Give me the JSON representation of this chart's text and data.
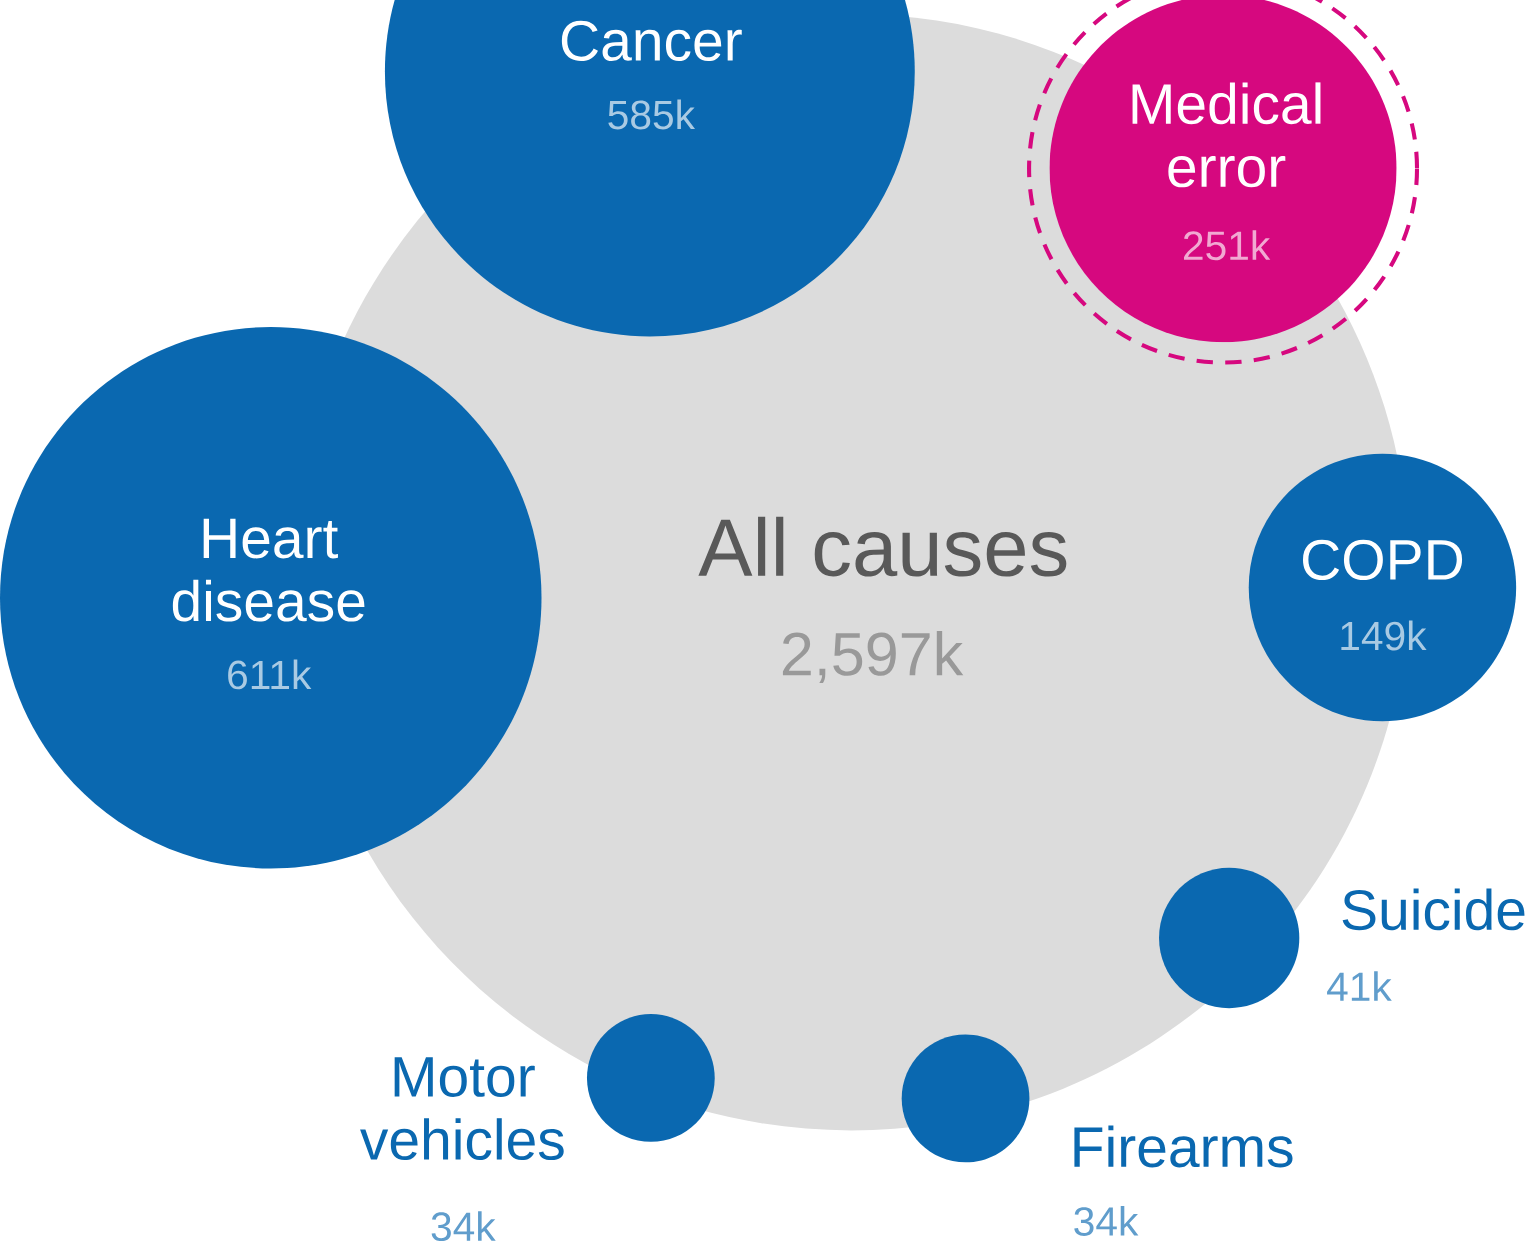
{
  "chart_data": {
    "type": "other",
    "categories": [
      "All causes",
      "Heart disease",
      "Cancer",
      "Medical error",
      "COPD",
      "Suicide",
      "Motor vehicles",
      "Firearms"
    ],
    "values": [
      2597,
      611,
      585,
      251,
      149,
      41,
      34,
      34
    ],
    "value_labels": [
      "2,597k",
      "611k",
      "585k",
      "251k",
      "149k",
      "41k",
      "34k",
      "34k"
    ],
    "colors": [
      "#dcdcdc",
      "#0a68b0",
      "#0a68b0",
      "#d6087f",
      "#0a68b0",
      "#0a68b0",
      "#0a68b0",
      "#0a68b0"
    ]
  }
}
